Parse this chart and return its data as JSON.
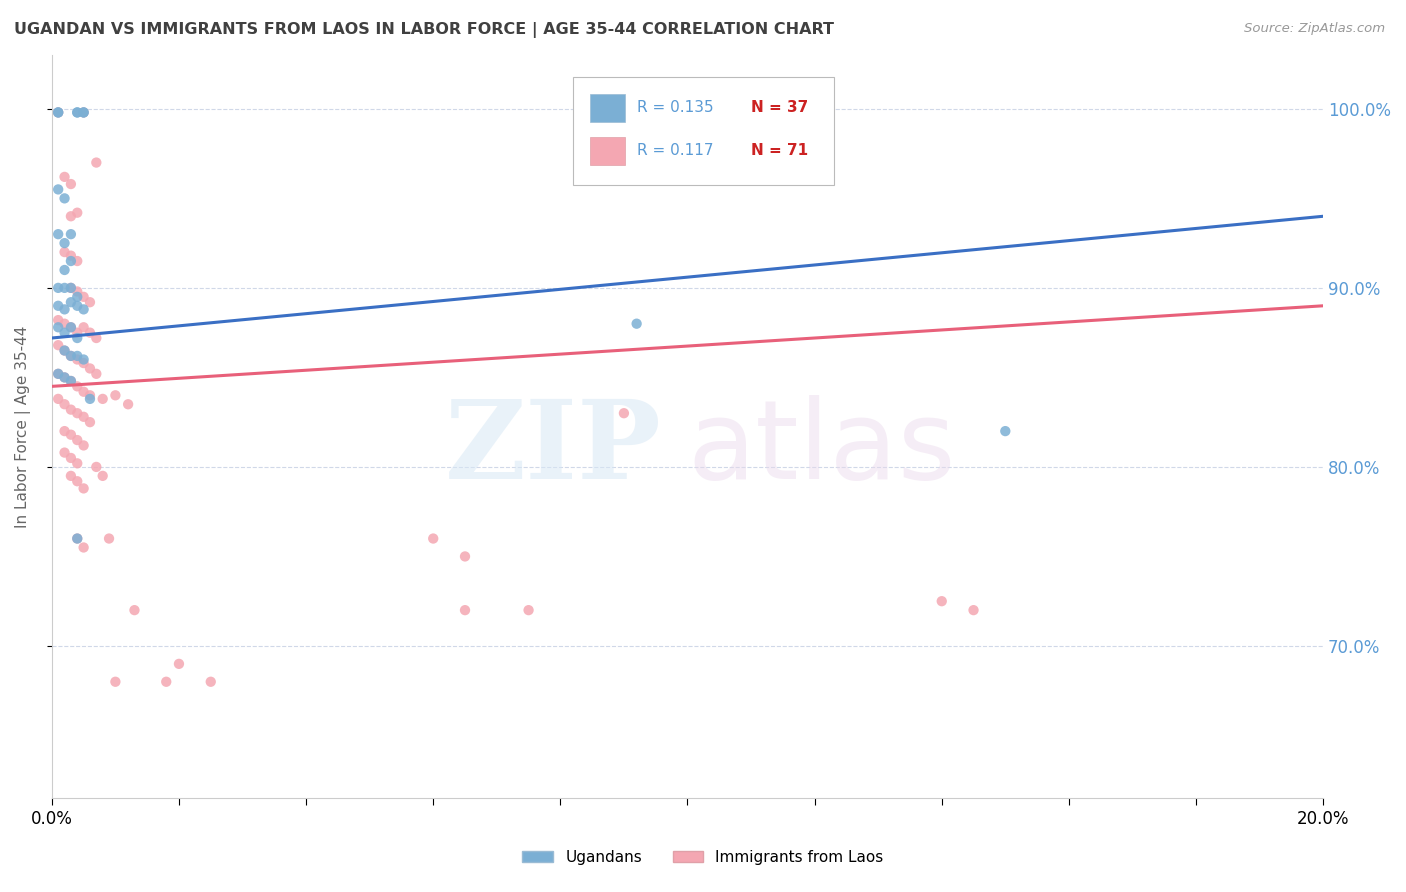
{
  "title": "UGANDAN VS IMMIGRANTS FROM LAOS IN LABOR FORCE | AGE 35-44 CORRELATION CHART",
  "source": "Source: ZipAtlas.com",
  "ylabel": "In Labor Force | Age 35-44",
  "xlim": [
    0.0,
    0.2
  ],
  "ylim": [
    0.615,
    1.03
  ],
  "yticks": [
    0.7,
    0.8,
    0.9,
    1.0
  ],
  "ytick_labels": [
    "70.0%",
    "80.0%",
    "90.0%",
    "100.0%"
  ],
  "xticks": [
    0.0,
    0.02,
    0.04,
    0.06,
    0.08,
    0.1,
    0.12,
    0.14,
    0.16,
    0.18,
    0.2
  ],
  "xtick_labels": [
    "0.0%",
    "",
    "",
    "",
    "",
    "",
    "",
    "",
    "",
    "",
    "20.0%"
  ],
  "blue_color": "#7BAFD4",
  "pink_color": "#F4A7B2",
  "trend_blue": "#3A6FC4",
  "trend_pink": "#E8607A",
  "axis_label_color": "#5B9BD5",
  "grid_color": "#D0D8E8",
  "title_color": "#404040",
  "blue_trend_y0": 0.872,
  "blue_trend_y1": 0.94,
  "pink_trend_y0": 0.845,
  "pink_trend_y1": 0.89,
  "ugandan_points": [
    [
      0.001,
      0.998
    ],
    [
      0.001,
      0.998
    ],
    [
      0.004,
      0.998
    ],
    [
      0.004,
      0.998
    ],
    [
      0.005,
      0.998
    ],
    [
      0.005,
      0.998
    ],
    [
      0.001,
      0.955
    ],
    [
      0.002,
      0.95
    ],
    [
      0.001,
      0.93
    ],
    [
      0.002,
      0.925
    ],
    [
      0.003,
      0.93
    ],
    [
      0.002,
      0.91
    ],
    [
      0.003,
      0.915
    ],
    [
      0.001,
      0.9
    ],
    [
      0.002,
      0.9
    ],
    [
      0.003,
      0.9
    ],
    [
      0.004,
      0.895
    ],
    [
      0.001,
      0.89
    ],
    [
      0.002,
      0.888
    ],
    [
      0.003,
      0.892
    ],
    [
      0.004,
      0.89
    ],
    [
      0.005,
      0.888
    ],
    [
      0.001,
      0.878
    ],
    [
      0.002,
      0.875
    ],
    [
      0.003,
      0.878
    ],
    [
      0.004,
      0.872
    ],
    [
      0.002,
      0.865
    ],
    [
      0.003,
      0.862
    ],
    [
      0.004,
      0.862
    ],
    [
      0.005,
      0.86
    ],
    [
      0.001,
      0.852
    ],
    [
      0.002,
      0.85
    ],
    [
      0.003,
      0.848
    ],
    [
      0.006,
      0.838
    ],
    [
      0.004,
      0.76
    ],
    [
      0.092,
      0.88
    ],
    [
      0.15,
      0.82
    ]
  ],
  "laos_points": [
    [
      0.001,
      0.998
    ],
    [
      0.005,
      0.998
    ],
    [
      0.007,
      0.97
    ],
    [
      0.002,
      0.962
    ],
    [
      0.003,
      0.958
    ],
    [
      0.003,
      0.94
    ],
    [
      0.004,
      0.942
    ],
    [
      0.002,
      0.92
    ],
    [
      0.003,
      0.918
    ],
    [
      0.004,
      0.915
    ],
    [
      0.003,
      0.9
    ],
    [
      0.004,
      0.898
    ],
    [
      0.005,
      0.895
    ],
    [
      0.006,
      0.892
    ],
    [
      0.001,
      0.882
    ],
    [
      0.002,
      0.88
    ],
    [
      0.003,
      0.878
    ],
    [
      0.004,
      0.875
    ],
    [
      0.005,
      0.878
    ],
    [
      0.006,
      0.875
    ],
    [
      0.007,
      0.872
    ],
    [
      0.001,
      0.868
    ],
    [
      0.002,
      0.865
    ],
    [
      0.003,
      0.862
    ],
    [
      0.004,
      0.86
    ],
    [
      0.005,
      0.858
    ],
    [
      0.006,
      0.855
    ],
    [
      0.007,
      0.852
    ],
    [
      0.001,
      0.852
    ],
    [
      0.002,
      0.85
    ],
    [
      0.003,
      0.848
    ],
    [
      0.004,
      0.845
    ],
    [
      0.005,
      0.842
    ],
    [
      0.006,
      0.84
    ],
    [
      0.008,
      0.838
    ],
    [
      0.001,
      0.838
    ],
    [
      0.002,
      0.835
    ],
    [
      0.003,
      0.832
    ],
    [
      0.004,
      0.83
    ],
    [
      0.005,
      0.828
    ],
    [
      0.006,
      0.825
    ],
    [
      0.002,
      0.82
    ],
    [
      0.003,
      0.818
    ],
    [
      0.004,
      0.815
    ],
    [
      0.005,
      0.812
    ],
    [
      0.002,
      0.808
    ],
    [
      0.003,
      0.805
    ],
    [
      0.004,
      0.802
    ],
    [
      0.003,
      0.795
    ],
    [
      0.004,
      0.792
    ],
    [
      0.005,
      0.788
    ],
    [
      0.007,
      0.8
    ],
    [
      0.008,
      0.795
    ],
    [
      0.01,
      0.84
    ],
    [
      0.012,
      0.835
    ],
    [
      0.004,
      0.76
    ],
    [
      0.005,
      0.755
    ],
    [
      0.009,
      0.76
    ],
    [
      0.013,
      0.72
    ],
    [
      0.01,
      0.68
    ],
    [
      0.06,
      0.76
    ],
    [
      0.065,
      0.75
    ],
    [
      0.065,
      0.72
    ],
    [
      0.075,
      0.72
    ],
    [
      0.09,
      0.83
    ],
    [
      0.14,
      0.725
    ],
    [
      0.145,
      0.72
    ],
    [
      0.018,
      0.68
    ],
    [
      0.02,
      0.69
    ],
    [
      0.025,
      0.68
    ]
  ]
}
